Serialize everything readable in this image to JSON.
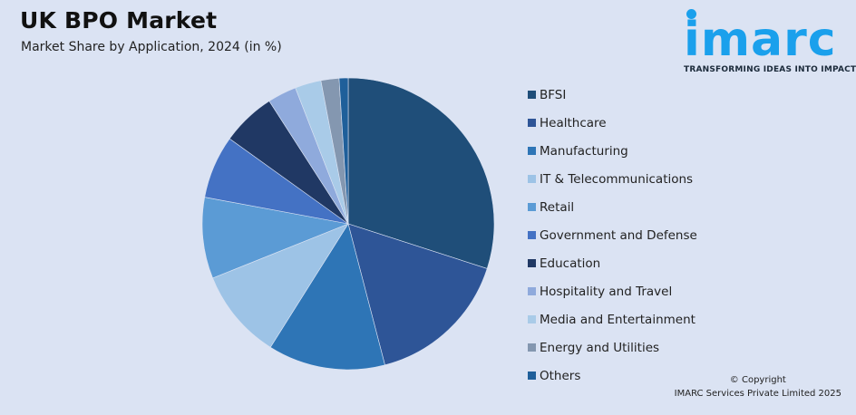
{
  "header": {
    "title": "UK BPO Market",
    "subtitle": "Market Share by Application, 2024 (in %)"
  },
  "logo": {
    "word": "imarc",
    "tagline": "TRANSFORMING IDEAS INTO IMPACT",
    "color": "#1aa0ec"
  },
  "copyright": {
    "line1": "© Copyright",
    "line2": "IMARC Services Private Limited 2025"
  },
  "chart_data": {
    "type": "pie",
    "title": "UK BPO Market",
    "subtitle": "Market Share by Application, 2024 (in %)",
    "legend_position": "right",
    "start_angle": "top, clockwise",
    "categories": [
      "BFSI",
      "Healthcare",
      "Manufacturing",
      "IT & Telecommunications",
      "Retail",
      "Government and Defense",
      "Education",
      "Hospitality and Travel",
      "Media and Entertainment",
      "Energy and Utilities",
      "Others"
    ],
    "values": [
      30,
      16,
      13,
      10,
      9,
      7,
      6,
      3.2,
      2.9,
      2,
      1
    ],
    "colors": [
      "#1f4e79",
      "#2e5597",
      "#2e75b6",
      "#9dc3e6",
      "#5b9bd5",
      "#4472c4",
      "#203864",
      "#8faadc",
      "#a9cbe8",
      "#8497b0",
      "#1f5f9a"
    ]
  }
}
